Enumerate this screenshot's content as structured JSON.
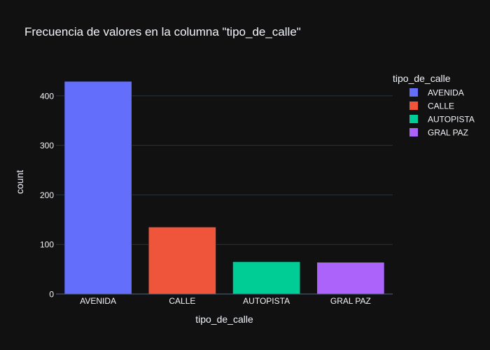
{
  "chart_data": {
    "type": "bar",
    "title": "Frecuencia de valores en la columna \"tipo_de_calle\"",
    "xlabel": "tipo_de_calle",
    "ylabel": "count",
    "categories": [
      "AVENIDA",
      "CALLE",
      "AUTOPISTA",
      "GRAL PAZ"
    ],
    "values": [
      429,
      135,
      65,
      64
    ],
    "colors": [
      "#636efa",
      "#ef553b",
      "#00cc96",
      "#ab63fa"
    ],
    "yticks": [
      0,
      100,
      200,
      300,
      400
    ],
    "ylim": [
      0,
      452
    ],
    "grid": true,
    "legend": {
      "title": "tipo_de_calle",
      "placement": "top-right",
      "items": [
        "AVENIDA",
        "CALLE",
        "AUTOPISTA",
        "GRAL PAZ"
      ]
    }
  },
  "theme": {
    "background": "#111111",
    "grid_color": "#283442",
    "text_color": "#f2f5fa"
  }
}
